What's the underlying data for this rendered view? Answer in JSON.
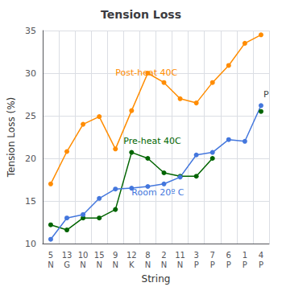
{
  "chart_data": {
    "type": "line",
    "title": "Tension Loss",
    "xlabel": "String",
    "ylabel": "Tension Loss (%)",
    "categories": [
      "5\nN",
      "13\nG",
      "10\nN",
      "15\nN",
      "9\nN",
      "12\nK",
      "8\nN",
      "2\nN",
      "11\nN",
      "3\nP",
      "7\nP",
      "6\nP",
      "1\nP",
      "4\nP"
    ],
    "series": [
      {
        "name": "Post-heat 40C",
        "color": "#FF8C00",
        "values": [
          17.0,
          20.8,
          24.0,
          24.9,
          21.1,
          25.6,
          30.0,
          28.9,
          27.0,
          26.5,
          28.9,
          30.9,
          33.5,
          34.5
        ]
      },
      {
        "name": "Pre-heat 40C",
        "color": "#006400",
        "values": [
          12.2,
          11.6,
          13.0,
          13.0,
          14.0,
          20.7,
          20.0,
          18.3,
          17.9,
          17.9,
          20.0,
          null,
          null,
          25.5
        ]
      },
      {
        "name": "Room 20º C",
        "color": "#4477DD",
        "values": [
          10.5,
          13.0,
          13.4,
          15.3,
          16.4,
          16.5,
          16.7,
          17.0,
          17.8,
          20.4,
          20.7,
          22.2,
          22.0,
          26.2
        ]
      }
    ],
    "ylim": [
      10,
      35
    ],
    "yticks": [
      10,
      15,
      20,
      25,
      30,
      35
    ],
    "grid": true,
    "marker": "circle",
    "annotations": [
      {
        "text": "P",
        "color": "#444444"
      }
    ]
  }
}
